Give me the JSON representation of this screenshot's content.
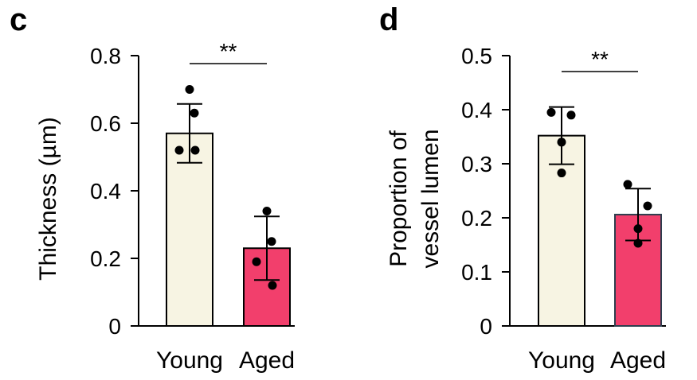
{
  "chart_data": [
    {
      "panel": "c",
      "type": "bar",
      "ylabel": "Thickness (µm)",
      "xlabel": "",
      "ylim": [
        0,
        0.8
      ],
      "yticks": [
        0,
        0.2,
        0.4,
        0.6,
        0.8
      ],
      "ytick_labels": [
        "0",
        "0.2",
        "0.4",
        "0.6",
        "0.8"
      ],
      "categories": [
        "Young",
        "Aged"
      ],
      "values": [
        0.57,
        0.23
      ],
      "errors": [
        0.087,
        0.094
      ],
      "points": [
        [
          0.7,
          0.63,
          0.52,
          0.52
        ],
        [
          0.34,
          0.25,
          0.19,
          0.12
        ]
      ],
      "colors": [
        "#f7f4e3",
        "#f23f6c"
      ],
      "significance": "**",
      "grid": false
    },
    {
      "panel": "d",
      "type": "bar",
      "ylabel": "Proportion of\nvessel lumen",
      "xlabel": "",
      "ylim": [
        0,
        0.5
      ],
      "yticks": [
        0,
        0.1,
        0.2,
        0.3,
        0.4,
        0.5
      ],
      "ytick_labels": [
        "0",
        "0.1",
        "0.2",
        "0.3",
        "0.4",
        "0.5"
      ],
      "categories": [
        "Young",
        "Aged"
      ],
      "values": [
        0.352,
        0.206
      ],
      "errors": [
        0.053,
        0.048
      ],
      "points": [
        [
          0.395,
          0.39,
          0.34,
          0.283
        ],
        [
          0.262,
          0.222,
          0.18,
          0.153
        ]
      ],
      "colors": [
        "#f7f4e3",
        "#f23f6c"
      ],
      "significance": "**",
      "grid": false
    }
  ]
}
